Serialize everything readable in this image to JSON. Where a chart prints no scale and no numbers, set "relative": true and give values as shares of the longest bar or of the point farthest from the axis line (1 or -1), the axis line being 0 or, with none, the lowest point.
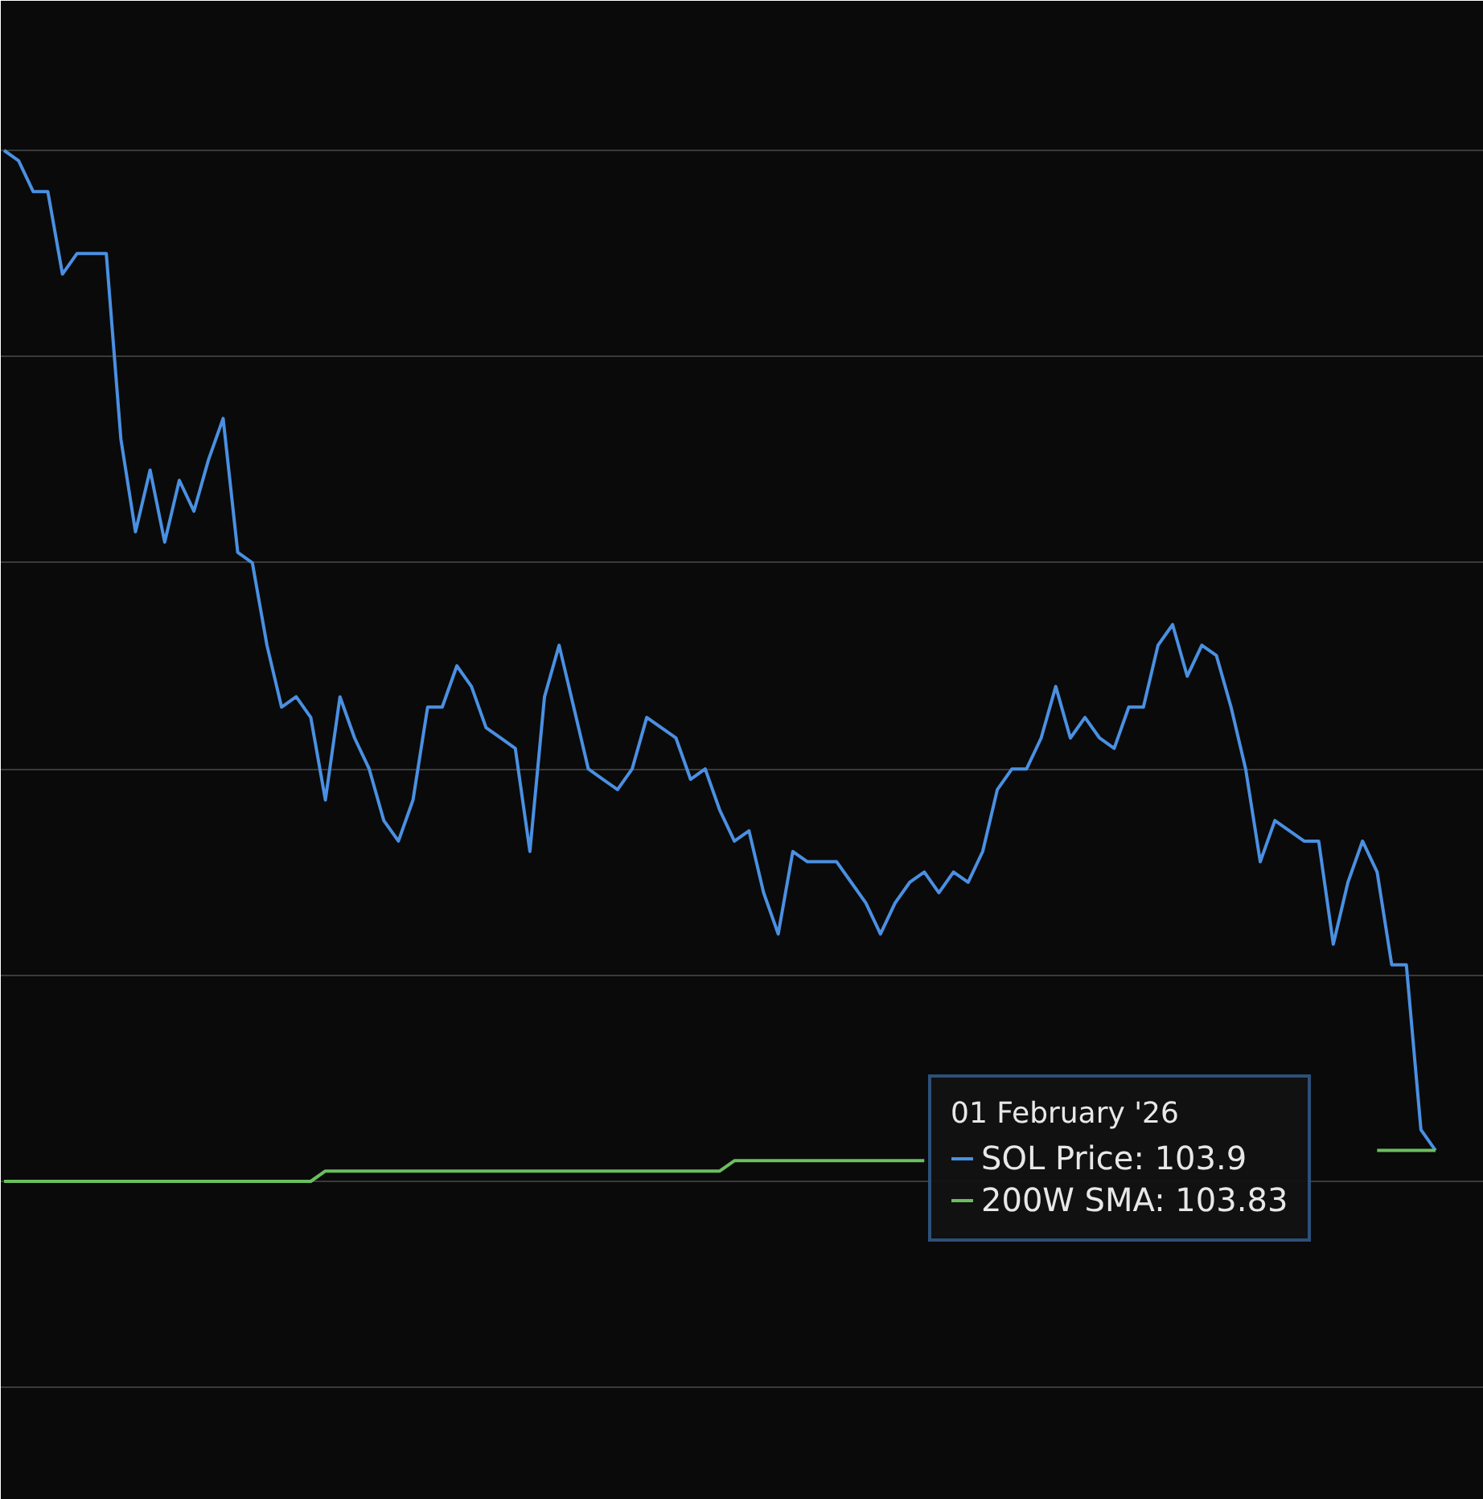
{
  "chart_data": {
    "type": "line",
    "relative": true,
    "grid": "y",
    "categories": [
      null,
      null,
      null,
      null,
      null,
      null,
      null,
      null,
      null,
      null,
      null,
      null,
      null,
      null,
      null,
      null,
      null,
      null,
      null,
      null,
      null,
      null,
      null,
      null,
      null,
      null,
      null,
      null,
      null,
      null,
      null,
      null,
      null,
      null,
      null,
      null,
      null,
      null,
      null,
      null,
      null,
      null,
      null,
      null,
      null,
      null,
      null,
      null,
      null,
      null,
      null,
      null,
      null,
      null,
      null,
      null,
      null,
      null,
      null,
      null,
      null,
      null,
      null,
      null,
      null,
      null,
      null,
      null,
      null,
      null,
      null,
      null,
      null,
      null,
      null,
      null,
      null,
      null,
      null,
      null,
      null,
      null,
      null,
      null,
      null,
      null,
      null,
      null,
      null,
      null,
      null,
      null,
      null,
      null,
      null,
      null,
      null,
      null,
      null
    ],
    "series": [
      {
        "name": "SOL Price: 103.9",
        "color": "#4a90e2",
        "values": [
          1.0,
          0.99,
          0.96,
          0.96,
          0.88,
          0.9,
          0.9,
          0.9,
          0.72,
          0.63,
          0.69,
          0.62,
          0.68,
          0.65,
          0.7,
          0.74,
          0.61,
          0.6,
          0.52,
          0.46,
          0.47,
          0.45,
          0.37,
          0.47,
          0.43,
          0.4,
          0.35,
          0.33,
          0.37,
          0.46,
          0.46,
          0.5,
          0.48,
          0.44,
          0.43,
          0.42,
          0.32,
          0.47,
          0.52,
          0.46,
          0.4,
          0.39,
          0.38,
          0.4,
          0.45,
          0.44,
          0.43,
          0.39,
          0.4,
          0.36,
          0.33,
          0.34,
          0.28,
          0.24,
          0.32,
          0.31,
          0.31,
          0.31,
          0.29,
          0.27,
          0.24,
          0.27,
          0.29,
          0.3,
          0.28,
          0.3,
          0.29,
          0.32,
          0.38,
          0.4,
          0.4,
          0.43,
          0.48,
          0.43,
          0.45,
          0.43,
          0.42,
          0.46,
          0.46,
          0.52,
          0.54,
          0.49,
          0.52,
          0.51,
          0.46,
          0.4,
          0.31,
          0.35,
          0.34,
          0.33,
          0.33,
          0.23,
          0.29,
          0.33,
          0.3,
          0.21,
          0.21,
          0.05,
          0.03
        ]
      },
      {
        "name": "200W SMA: 103.83",
        "color": "#6abf5e",
        "values": [
          0,
          0,
          0,
          0,
          0,
          0,
          0,
          0,
          0,
          0,
          0,
          0,
          0,
          0,
          0,
          0,
          0,
          0,
          0,
          0,
          0,
          0,
          0.01,
          0.01,
          0.01,
          0.01,
          0.01,
          0.01,
          0.01,
          0.01,
          0.01,
          0.01,
          0.01,
          0.01,
          0.01,
          0.01,
          0.01,
          0.01,
          0.01,
          0.01,
          0.01,
          0.01,
          0.01,
          0.01,
          0.01,
          0.01,
          0.01,
          0.01,
          0.01,
          0.01,
          0.02,
          0.02,
          0.02,
          0.02,
          0.02,
          0.02,
          0.02,
          0.02,
          0.02,
          0.02,
          0.02,
          0.02,
          0.02,
          0.02,
          null,
          null,
          null,
          null,
          null,
          null,
          null,
          null,
          null,
          null,
          null,
          null,
          null,
          null,
          null,
          null,
          null,
          null,
          null,
          null,
          null,
          null,
          null,
          null,
          null,
          null,
          null,
          null,
          null,
          null,
          0.03,
          0.03,
          0.03,
          0.03,
          0.03
        ]
      }
    ],
    "legend": "bottom right",
    "legend_title": "01 February '26"
  }
}
